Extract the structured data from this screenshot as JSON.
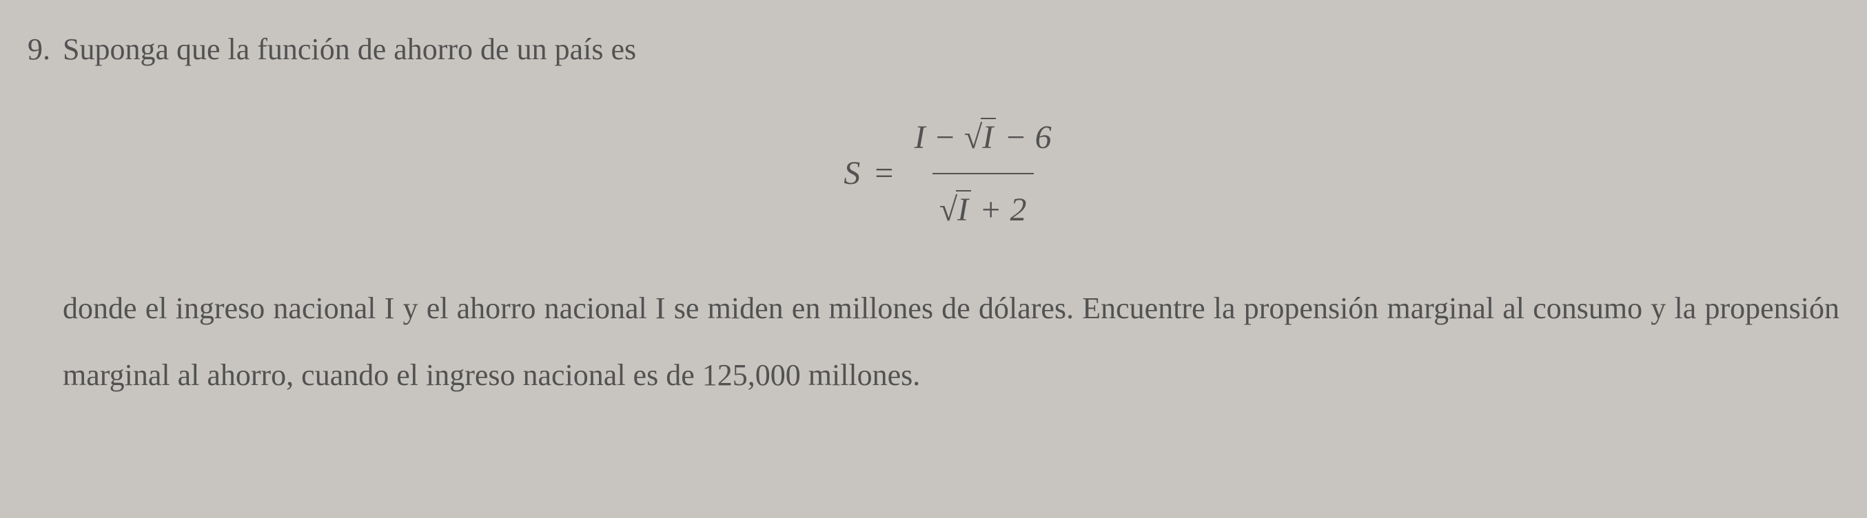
{
  "problem": {
    "number": "9.",
    "intro": "Suponga que la función de ahorro de un país es",
    "equation": {
      "lhs": "S",
      "equals": "=",
      "numerator_prefix": "I − ",
      "numerator_sqrt_symbol": "√",
      "numerator_radicand": "I",
      "numerator_suffix": " − 6",
      "denominator_sqrt_symbol": "√",
      "denominator_radicand": "I",
      "denominator_suffix": " + 2"
    },
    "description": "donde el ingreso nacional I y el ahorro nacional I se miden en millones de dólares. Encuentre la propensión marginal al consumo y la propensión marginal al ahorro, cuando el ingreso nacional es de 125,000 millones."
  },
  "styling": {
    "background_color": "#c8c5c0",
    "text_color": "#525252",
    "font_family": "Times New Roman",
    "base_font_size_pt": 33,
    "equation_font_size_pt": 36,
    "line_height": 1.9,
    "description_line_height": 2.2,
    "border_color": "#525252"
  }
}
